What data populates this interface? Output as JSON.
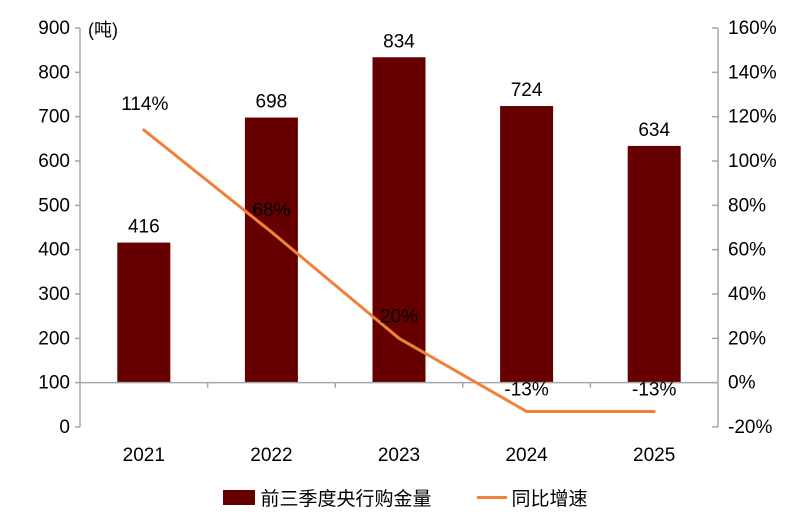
{
  "colors": {
    "bar": "#660000",
    "line": "#F0813A",
    "axis": "#A6A6A6",
    "text": "#000000",
    "background": "#FFFFFF"
  },
  "chart_data": {
    "type": "bar",
    "subtype": "combo-bar-line-dual-axis",
    "categories": [
      "2021",
      "2022",
      "2023",
      "2024",
      "2025"
    ],
    "series": [
      {
        "name": "前三季度央行购金量",
        "type": "bar",
        "axis": "left",
        "values": [
          416,
          698,
          834,
          724,
          634
        ],
        "data_labels": [
          "416",
          "698",
          "834",
          "724",
          "634"
        ],
        "color": "#660000"
      },
      {
        "name": "同比增速",
        "type": "line",
        "axis": "right",
        "values": [
          114,
          68,
          20,
          -13,
          -13
        ],
        "data_labels": [
          "114%",
          "68%",
          "20%",
          "-13%",
          "-13%"
        ],
        "color": "#F0813A"
      }
    ],
    "left_axis": {
      "title": "(吨)",
      "min": 0,
      "max": 900,
      "step": 100,
      "tick_values": [
        0,
        100,
        200,
        300,
        400,
        500,
        600,
        700,
        800,
        900
      ],
      "tick_labels": [
        "0",
        "100",
        "200",
        "300",
        "400",
        "500",
        "600",
        "700",
        "800",
        "900"
      ]
    },
    "right_axis": {
      "min": -20,
      "max": 160,
      "step": 20,
      "tick_values": [
        -20,
        0,
        20,
        40,
        60,
        80,
        100,
        120,
        140,
        160
      ],
      "tick_labels": [
        "-20%",
        "0%",
        "20%",
        "40%",
        "60%",
        "80%",
        "100%",
        "120%",
        "140%",
        "160%"
      ]
    },
    "x_axis_cross_at_right_value": 0,
    "grid": false,
    "legend_position": "bottom"
  }
}
